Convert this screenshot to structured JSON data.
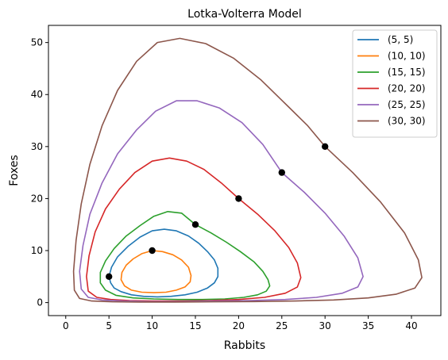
{
  "chart_data": {
    "type": "line",
    "title": "Lotka-Volterra Model",
    "xlabel": "Rabbits",
    "ylabel": "Foxes",
    "xlim": [
      -2.0,
      43.4
    ],
    "ylim": [
      -2.5,
      53.3
    ],
    "xticks": [
      0,
      5,
      10,
      15,
      20,
      25,
      30,
      35,
      40
    ],
    "yticks": [
      0,
      10,
      20,
      30,
      40,
      50
    ],
    "grid": false,
    "legend_position": "top-right",
    "series": [
      {
        "name": "(5, 5)",
        "color": "#1f77b4",
        "start": [
          5,
          5
        ],
        "x": [
          5.0,
          5.3,
          6.0,
          7.2,
          8.6,
          10.0,
          11.4,
          12.8,
          14.2,
          15.4,
          16.4,
          17.2,
          17.6,
          17.6,
          17.2,
          16.4,
          15.2,
          13.8,
          12.2,
          10.6,
          9.0,
          7.6,
          6.4,
          5.6,
          5.2,
          5.0
        ],
        "y": [
          5.0,
          6.8,
          8.8,
          10.8,
          12.6,
          13.8,
          14.1,
          13.8,
          12.8,
          11.4,
          9.8,
          8.2,
          6.6,
          5.0,
          3.8,
          2.8,
          2.0,
          1.5,
          1.2,
          1.1,
          1.2,
          1.5,
          2.1,
          2.8,
          3.8,
          5.0
        ]
      },
      {
        "name": "(10, 10)",
        "color": "#ff7f0e",
        "start": [
          10,
          10
        ],
        "x": [
          10.0,
          11.2,
          12.4,
          13.4,
          14.2,
          14.5,
          14.4,
          13.8,
          12.8,
          11.6,
          10.2,
          8.8,
          7.6,
          6.8,
          6.4,
          6.5,
          7.0,
          7.8,
          8.8,
          10.0
        ],
        "y": [
          10.0,
          9.8,
          9.2,
          8.2,
          6.8,
          5.2,
          4.0,
          3.0,
          2.4,
          2.0,
          1.9,
          2.0,
          2.4,
          3.2,
          4.4,
          5.8,
          7.2,
          8.4,
          9.4,
          10.0
        ]
      },
      {
        "name": "(15, 15)",
        "color": "#2ca02c",
        "start": [
          15,
          15
        ],
        "x": [
          15.0,
          16.8,
          18.6,
          20.2,
          21.8,
          22.8,
          23.4,
          23.6,
          23.2,
          22.2,
          20.6,
          18.4,
          15.8,
          13.0,
          10.2,
          7.8,
          5.8,
          4.6,
          4.0,
          4.0,
          4.6,
          5.6,
          7.0,
          8.6,
          10.2,
          11.8,
          13.4,
          15.0
        ],
        "y": [
          15.0,
          13.4,
          11.6,
          9.8,
          7.8,
          6.0,
          4.4,
          3.2,
          2.2,
          1.5,
          1.0,
          0.7,
          0.6,
          0.6,
          0.7,
          0.9,
          1.4,
          2.4,
          3.8,
          5.8,
          8.0,
          10.4,
          12.8,
          14.8,
          16.6,
          17.5,
          17.2,
          15.0
        ]
      },
      {
        "name": "(20, 20)",
        "color": "#d62728",
        "start": [
          20,
          20
        ],
        "x": [
          20.0,
          22.2,
          24.2,
          25.8,
          26.8,
          27.2,
          26.8,
          25.4,
          23.0,
          20.0,
          16.6,
          13.2,
          10.0,
          7.4,
          5.2,
          3.6,
          2.6,
          2.4,
          2.7,
          3.4,
          4.6,
          6.2,
          8.0,
          10.0,
          12.0,
          14.0,
          16.0,
          18.0,
          20.0
        ],
        "y": [
          20.0,
          17.0,
          13.8,
          10.6,
          7.6,
          4.8,
          3.0,
          1.8,
          1.0,
          0.6,
          0.4,
          0.3,
          0.3,
          0.4,
          0.6,
          1.0,
          2.2,
          5.0,
          9.0,
          13.6,
          18.0,
          21.8,
          25.0,
          27.2,
          27.8,
          27.2,
          25.6,
          23.0,
          20.0
        ]
      },
      {
        "name": "(25, 25)",
        "color": "#9467bd",
        "start": [
          25,
          25
        ],
        "x": [
          25.0,
          27.6,
          30.0,
          32.2,
          33.8,
          34.4,
          33.8,
          32.0,
          29.0,
          25.4,
          21.4,
          17.2,
          13.2,
          9.6,
          6.6,
          4.2,
          2.6,
          1.8,
          1.6,
          2.0,
          2.8,
          4.2,
          6.0,
          8.2,
          10.4,
          12.8,
          15.2,
          17.8,
          20.4,
          22.8,
          25.0
        ],
        "y": [
          25.0,
          21.2,
          17.2,
          12.8,
          8.6,
          5.0,
          3.0,
          1.8,
          1.0,
          0.6,
          0.4,
          0.3,
          0.2,
          0.2,
          0.3,
          0.5,
          1.0,
          2.6,
          6.0,
          11.0,
          17.0,
          23.0,
          28.6,
          33.2,
          36.8,
          38.8,
          38.8,
          37.4,
          34.6,
          30.4,
          25.0
        ]
      },
      {
        "name": "(30, 30)",
        "color": "#8c564b",
        "start": [
          30,
          30
        ],
        "x": [
          30.0,
          33.2,
          36.4,
          39.2,
          40.8,
          41.2,
          40.4,
          38.2,
          35.0,
          31.0,
          26.6,
          21.8,
          17.0,
          12.6,
          8.6,
          5.4,
          3.0,
          1.6,
          1.0,
          0.9,
          1.2,
          1.8,
          2.8,
          4.2,
          6.0,
          8.2,
          10.6,
          13.2,
          16.2,
          19.4,
          22.6,
          25.8,
          28.0,
          30.0
        ],
        "y": [
          30.0,
          25.0,
          19.4,
          13.4,
          8.2,
          4.8,
          2.8,
          1.6,
          0.9,
          0.5,
          0.3,
          0.2,
          0.15,
          0.1,
          0.1,
          0.15,
          0.3,
          0.8,
          2.4,
          6.0,
          12.0,
          19.0,
          26.6,
          34.0,
          40.8,
          46.4,
          50.0,
          50.8,
          49.8,
          47.0,
          42.8,
          37.6,
          34.0,
          30.0
        ]
      }
    ]
  }
}
